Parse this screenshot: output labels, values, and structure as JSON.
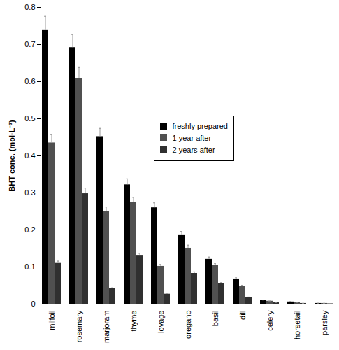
{
  "chart_data": {
    "type": "bar",
    "y_label": "BHT conc. (mol·L⁻¹)",
    "categories": [
      "milfoil",
      "rosemary",
      "marjoram",
      "thyme",
      "lovage",
      "oregano",
      "basil",
      "dill",
      "celery",
      "horsetail",
      "parsley"
    ],
    "series": [
      {
        "name": "freshly prepared",
        "color": "#000000",
        "values": [
          0.738,
          0.692,
          0.452,
          0.322,
          0.26,
          0.187,
          0.121,
          0.068,
          0.01,
          0.006,
          0.002
        ],
        "errors": [
          0.038,
          0.035,
          0.022,
          0.016,
          0.013,
          0.009,
          0.006,
          0.003,
          0.001,
          0.001,
          0.0005
        ]
      },
      {
        "name": "1 year after",
        "color": "#505050",
        "values": [
          0.435,
          0.608,
          0.25,
          0.274,
          0.102,
          0.151,
          0.104,
          0.049,
          0.008,
          0.004,
          0.002
        ],
        "errors": [
          0.022,
          0.03,
          0.012,
          0.014,
          0.005,
          0.008,
          0.005,
          0.002,
          0.0005,
          0.0005,
          0.0002
        ]
      },
      {
        "name": "2 years after",
        "color": "#303030",
        "values": [
          0.11,
          0.298,
          0.042,
          0.13,
          0.027,
          0.083,
          0.055,
          0.018,
          0.004,
          0.002,
          0.001
        ],
        "errors": [
          0.006,
          0.015,
          0.002,
          0.007,
          0.002,
          0.004,
          0.003,
          0.001,
          0.0003,
          0.0002,
          0.0001
        ]
      }
    ],
    "ylim": [
      0,
      0.8
    ],
    "yticks": [
      0,
      0.1,
      0.2,
      0.3,
      0.4,
      0.5,
      0.6,
      0.7,
      0.8
    ],
    "grid": false,
    "legend": "upper right"
  }
}
